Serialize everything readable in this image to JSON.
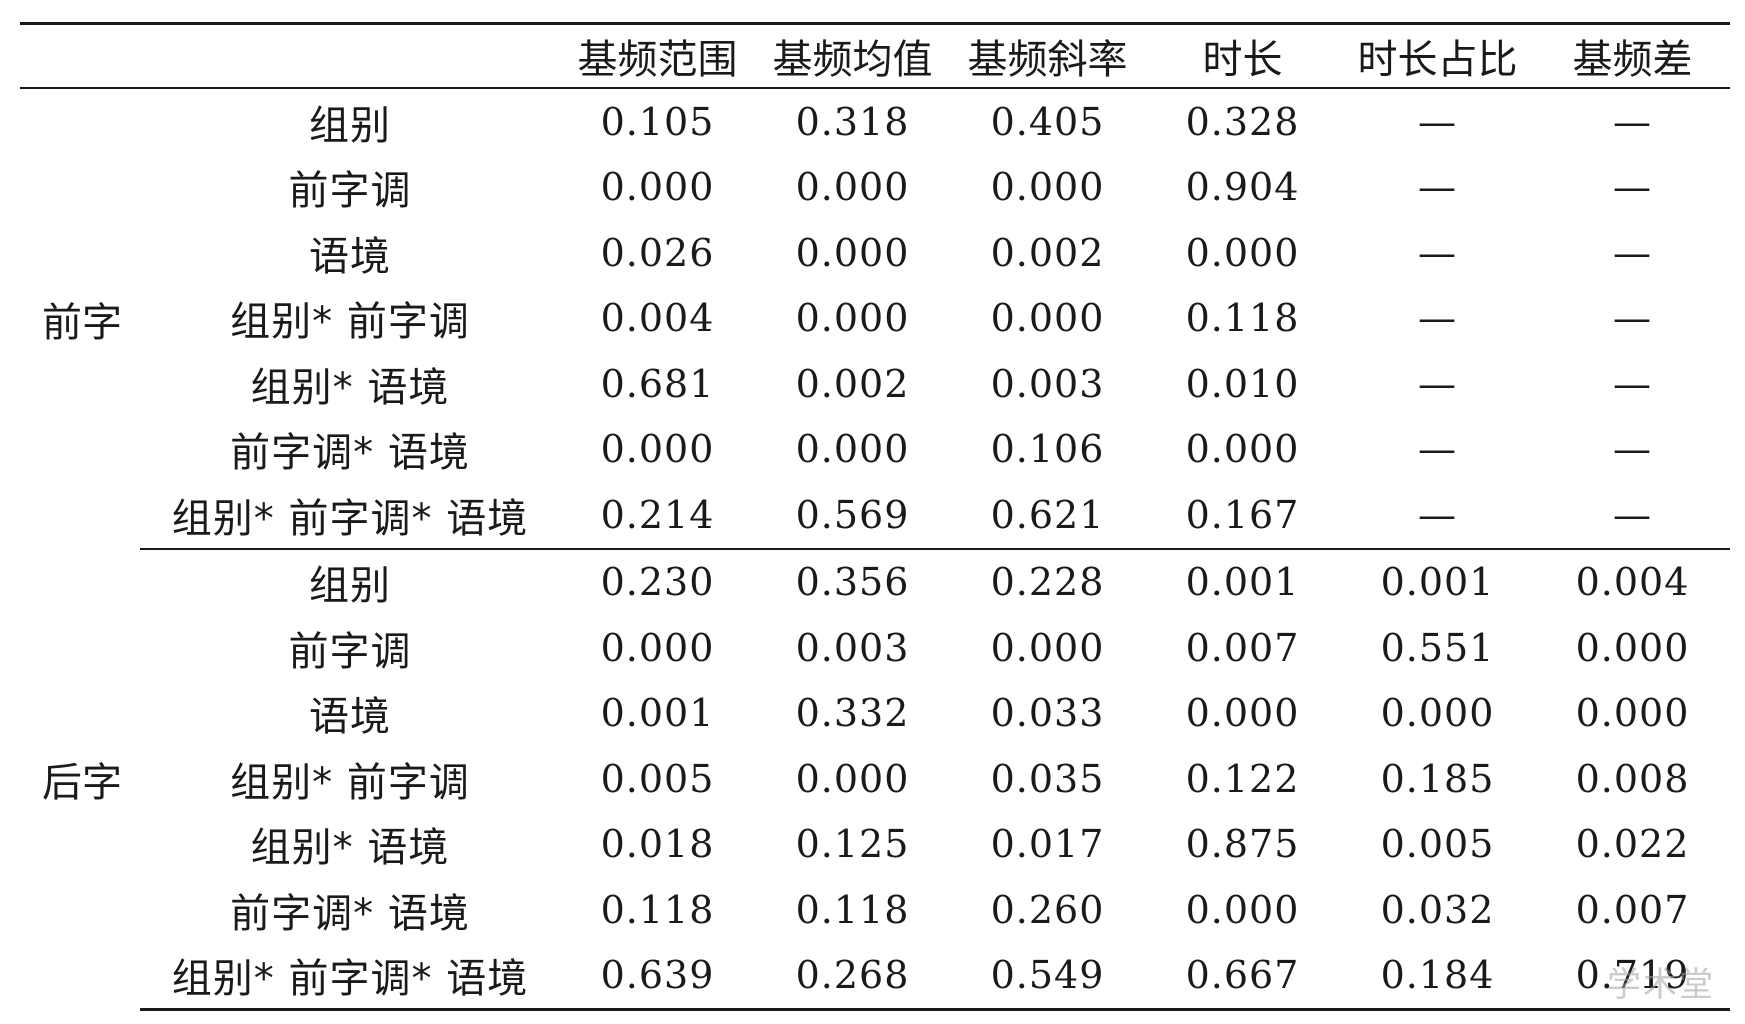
{
  "table": {
    "columns": [
      "基频范围",
      "基频均值",
      "基频斜率",
      "时长",
      "时长占比",
      "基频差"
    ],
    "sections": [
      {
        "label": "前字",
        "rows": [
          {
            "effect": "组别",
            "values": [
              "0.105",
              "0.318",
              "0.405",
              "0.328",
              "—",
              "—"
            ]
          },
          {
            "effect": "前字调",
            "values": [
              "0.000",
              "0.000",
              "0.000",
              "0.904",
              "—",
              "—"
            ]
          },
          {
            "effect": "语境",
            "values": [
              "0.026",
              "0.000",
              "0.002",
              "0.000",
              "—",
              "—"
            ]
          },
          {
            "effect": "组别* 前字调",
            "values": [
              "0.004",
              "0.000",
              "0.000",
              "0.118",
              "—",
              "—"
            ]
          },
          {
            "effect": "组别* 语境",
            "values": [
              "0.681",
              "0.002",
              "0.003",
              "0.010",
              "—",
              "—"
            ]
          },
          {
            "effect": "前字调* 语境",
            "values": [
              "0.000",
              "0.000",
              "0.106",
              "0.000",
              "—",
              "—"
            ]
          },
          {
            "effect": "组别* 前字调* 语境",
            "values": [
              "0.214",
              "0.569",
              "0.621",
              "0.167",
              "—",
              "—"
            ]
          }
        ]
      },
      {
        "label": "后字",
        "rows": [
          {
            "effect": "组别",
            "values": [
              "0.230",
              "0.356",
              "0.228",
              "0.001",
              "0.001",
              "0.004"
            ]
          },
          {
            "effect": "前字调",
            "values": [
              "0.000",
              "0.003",
              "0.000",
              "0.007",
              "0.551",
              "0.000"
            ]
          },
          {
            "effect": "语境",
            "values": [
              "0.001",
              "0.332",
              "0.033",
              "0.000",
              "0.000",
              "0.000"
            ]
          },
          {
            "effect": "组别* 前字调",
            "values": [
              "0.005",
              "0.000",
              "0.035",
              "0.122",
              "0.185",
              "0.008"
            ]
          },
          {
            "effect": "组别* 语境",
            "values": [
              "0.018",
              "0.125",
              "0.017",
              "0.875",
              "0.005",
              "0.022"
            ]
          },
          {
            "effect": "前字调* 语境",
            "values": [
              "0.118",
              "0.118",
              "0.260",
              "0.000",
              "0.032",
              "0.007"
            ]
          },
          {
            "effect": "组别* 前字调* 语境",
            "values": [
              "0.639",
              "0.268",
              "0.549",
              "0.667",
              "0.184",
              "0.719"
            ]
          }
        ]
      }
    ]
  },
  "watermark": "学术堂"
}
